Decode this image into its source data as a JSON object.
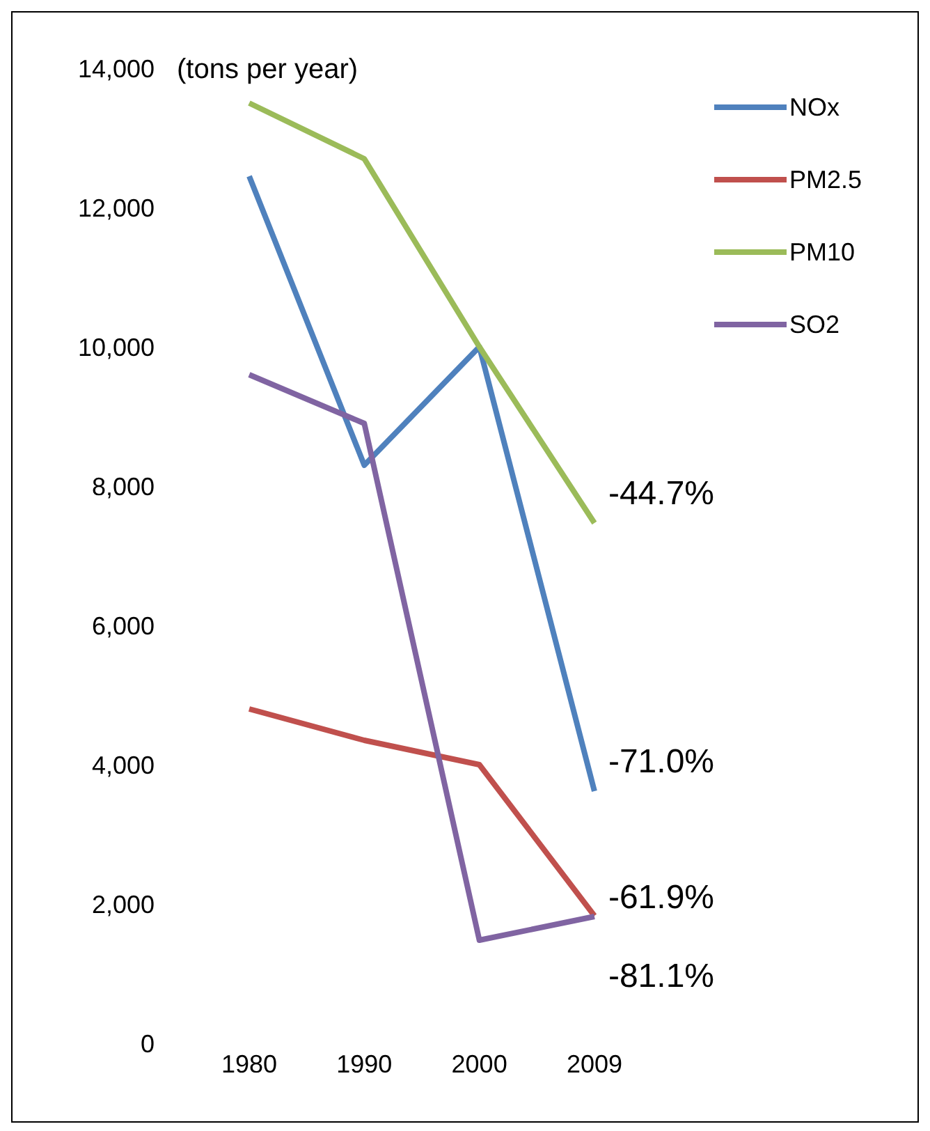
{
  "chart_data": {
    "type": "line",
    "ylabel": "(tons per year)",
    "categories": [
      "1980",
      "1990",
      "2000",
      "2009"
    ],
    "series": [
      {
        "name": "NOx",
        "color": "#4f81bd",
        "values": [
          12450,
          8300,
          10000,
          3620
        ]
      },
      {
        "name": "PM2.5",
        "color": "#c0504d",
        "values": [
          4800,
          4350,
          4000,
          1830
        ]
      },
      {
        "name": "PM10",
        "color": "#9bbb59",
        "values": [
          13500,
          12700,
          10000,
          7470
        ]
      },
      {
        "name": "SO2",
        "color": "#8064a2",
        "values": [
          9600,
          8900,
          1480,
          1820
        ]
      }
    ],
    "ylim": [
      0,
      14000
    ],
    "yticks": [
      {
        "value": 0,
        "label": "0"
      },
      {
        "value": 2000,
        "label": "2,000"
      },
      {
        "value": 4000,
        "label": "4,000"
      },
      {
        "value": 6000,
        "label": "6,000"
      },
      {
        "value": 8000,
        "label": "8,000"
      },
      {
        "value": 10000,
        "label": "10,000"
      },
      {
        "value": 12000,
        "label": "12,000"
      },
      {
        "value": 14000,
        "label": "14,000"
      }
    ],
    "grid": false,
    "legend": "top right",
    "marker": "none",
    "line_style": "solid",
    "annotations": [
      {
        "text": "-44.7%",
        "x": "2009",
        "y": 7470
      },
      {
        "text": "-71.0%",
        "x": "2009",
        "y": 3620
      },
      {
        "text": "-61.9%",
        "x": "2009",
        "y": 1830
      },
      {
        "text": "-81.1%",
        "x": "2009",
        "y": 1820
      }
    ]
  }
}
